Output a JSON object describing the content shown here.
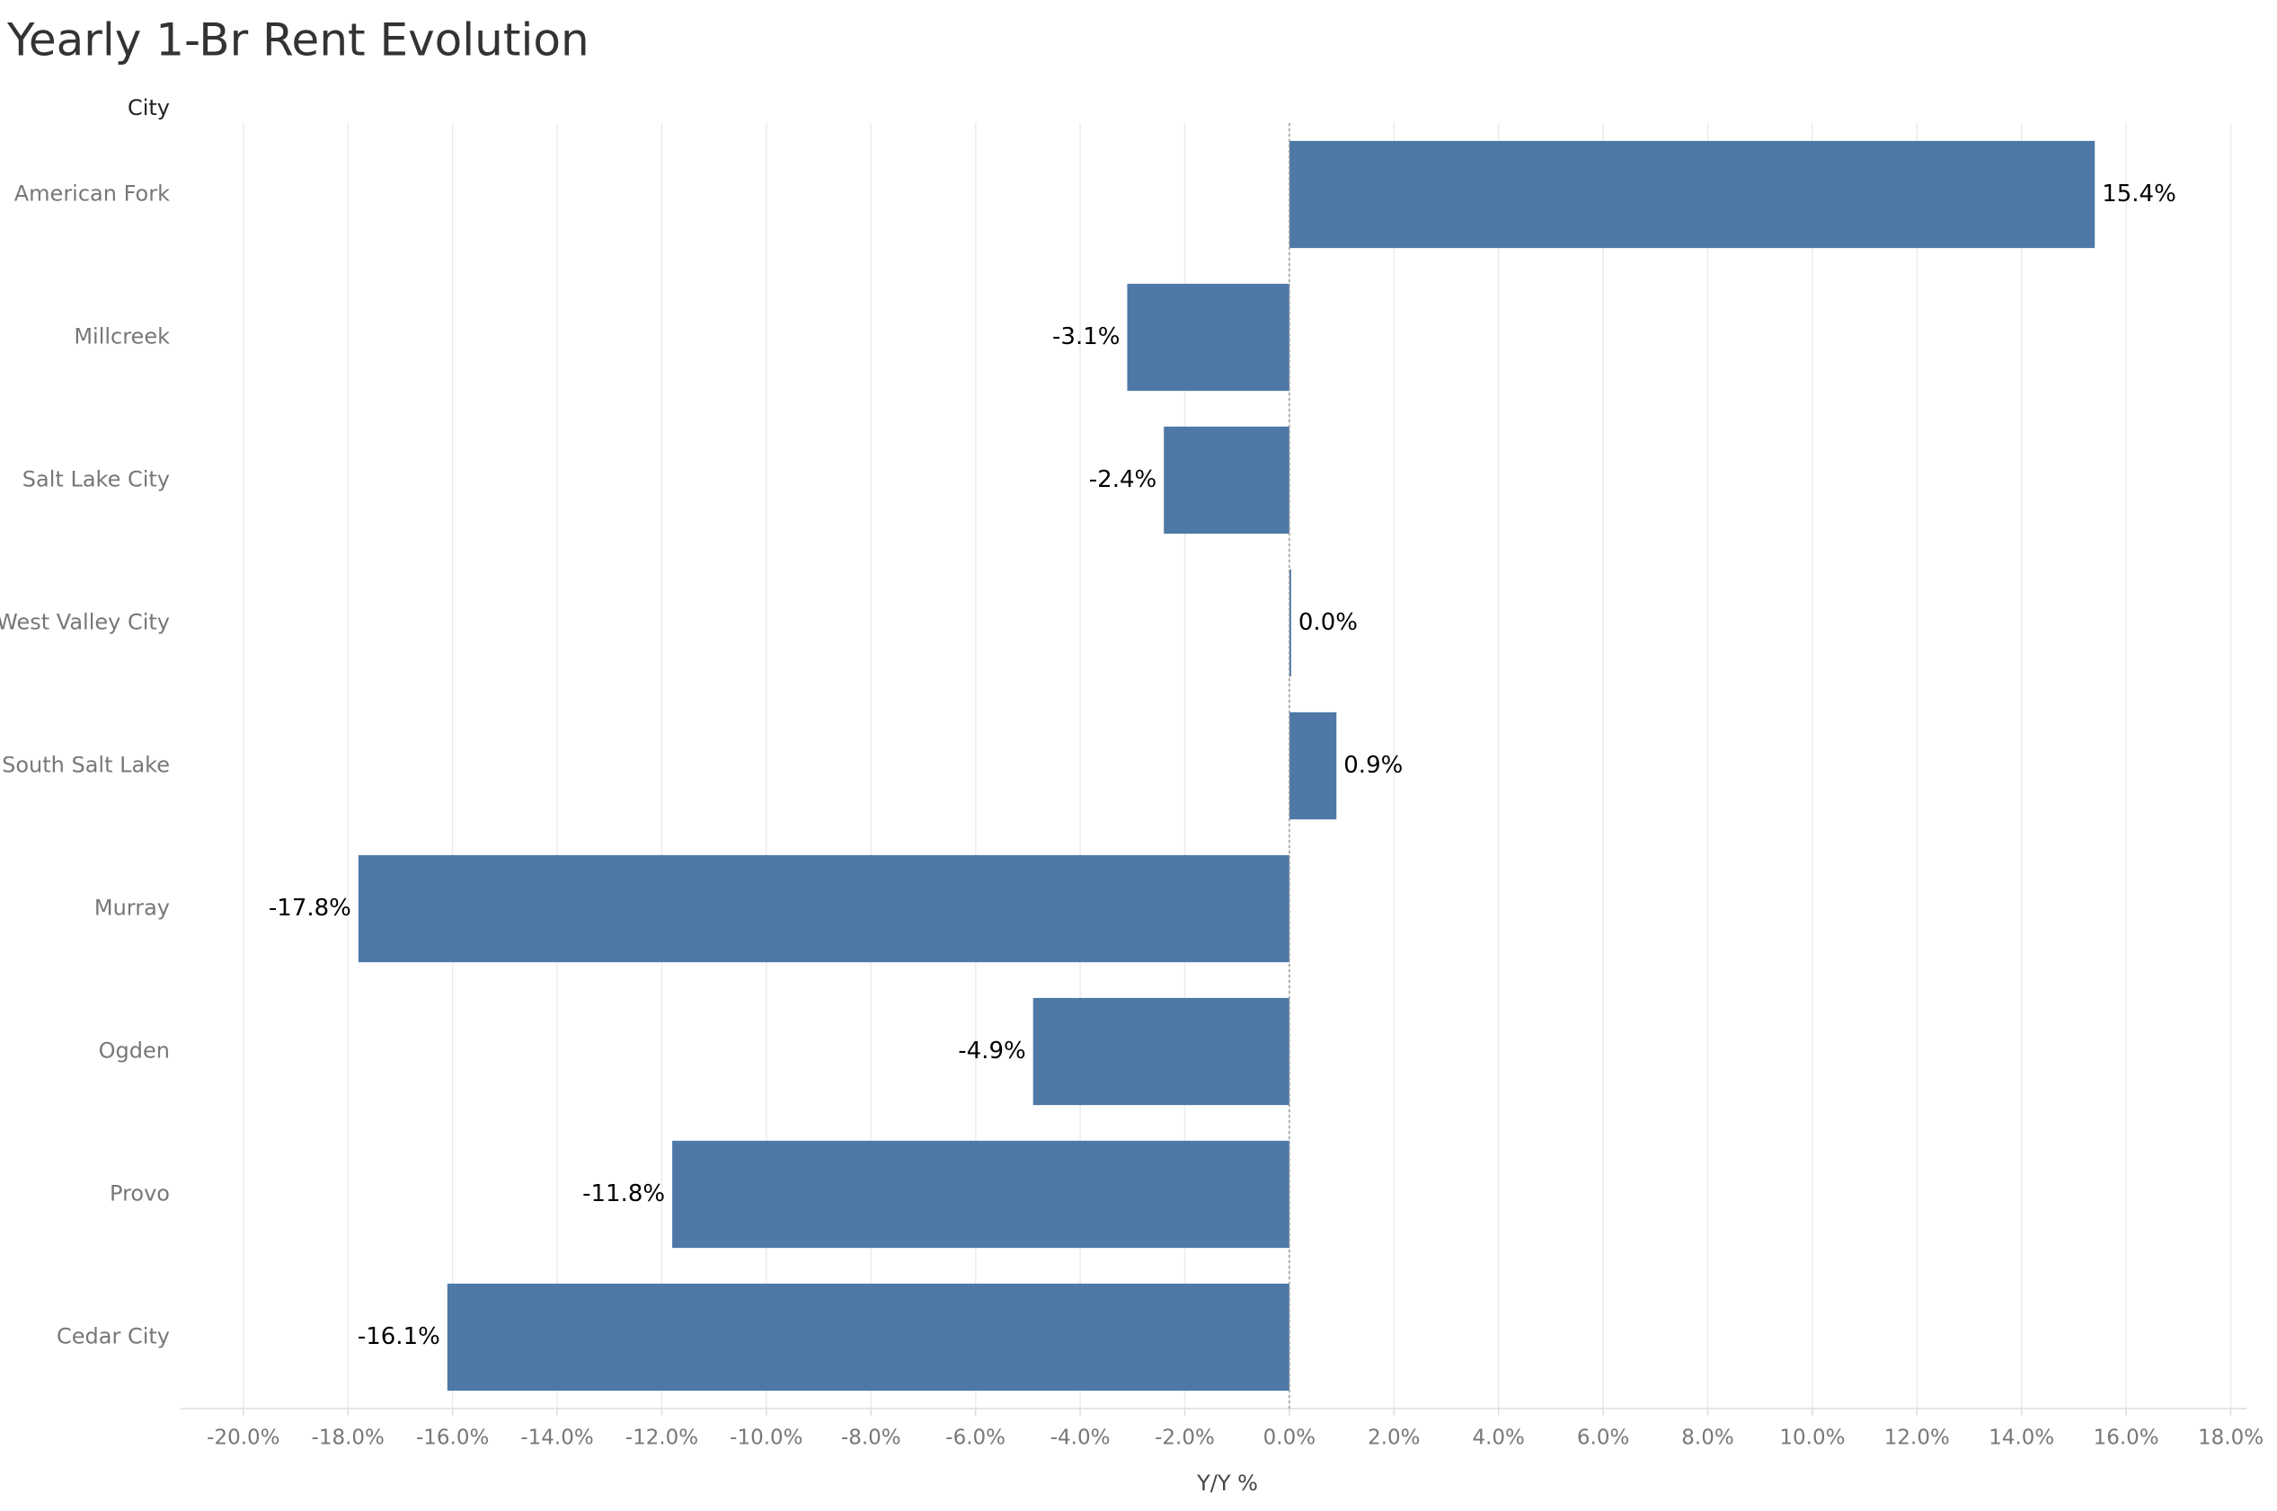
{
  "chart_data": {
    "type": "bar",
    "orientation": "horizontal",
    "title": "Yearly 1-Br Rent Evolution",
    "y_label": "City",
    "x_label": "Y/Y %",
    "categories": [
      "American Fork",
      "Millcreek",
      "Salt Lake City",
      "West Valley City",
      "South Salt Lake",
      "Murray",
      "Ogden",
      "Provo",
      "Cedar City"
    ],
    "values": [
      15.4,
      -3.1,
      -2.4,
      0.0,
      0.9,
      -17.8,
      -4.9,
      -11.8,
      -16.1
    ],
    "value_labels": [
      "15.4%",
      "-3.1%",
      "-2.4%",
      "0.0%",
      "0.9%",
      "-17.8%",
      "-4.9%",
      "-11.8%",
      "-16.1%"
    ],
    "color": "#4e79a7",
    "xlim": [
      -21.2,
      18.3
    ],
    "xticks": [
      {
        "value": -20,
        "label": "-20.0%"
      },
      {
        "value": -18,
        "label": "-18.0%"
      },
      {
        "value": -16,
        "label": "-16.0%"
      },
      {
        "value": -14,
        "label": "-14.0%"
      },
      {
        "value": -12,
        "label": "-12.0%"
      },
      {
        "value": -10,
        "label": "-10.0%"
      },
      {
        "value": -8,
        "label": "-8.0%"
      },
      {
        "value": -6,
        "label": "-6.0%"
      },
      {
        "value": -4,
        "label": "-4.0%"
      },
      {
        "value": -2,
        "label": "-2.0%"
      },
      {
        "value": 0,
        "label": "0.0%"
      },
      {
        "value": 2,
        "label": "2.0%"
      },
      {
        "value": 4,
        "label": "4.0%"
      },
      {
        "value": 6,
        "label": "6.0%"
      },
      {
        "value": 8,
        "label": "8.0%"
      },
      {
        "value": 10,
        "label": "10.0%"
      },
      {
        "value": 12,
        "label": "12.0%"
      },
      {
        "value": 14,
        "label": "14.0%"
      },
      {
        "value": 16,
        "label": "16.0%"
      },
      {
        "value": 18,
        "label": "18.0%"
      }
    ],
    "grid": true
  }
}
